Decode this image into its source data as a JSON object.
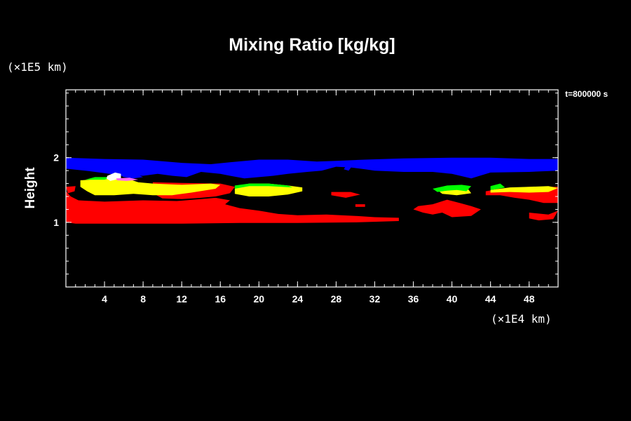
{
  "chart_data": {
    "type": "heatmap",
    "title": "Mixing Ratio [kg/kg]",
    "xlabel": "",
    "ylabel": "Height",
    "x_unit_label": "(×1E4 km)",
    "y_unit_label": "(×1E5 km)",
    "time_label": "t=800000 s",
    "xlim": [
      0,
      51
    ],
    "ylim": [
      0,
      3.05
    ],
    "x_ticks": [
      4,
      8,
      12,
      16,
      20,
      24,
      28,
      32,
      36,
      40,
      44,
      48
    ],
    "y_ticks": [
      1,
      2
    ],
    "colors": {
      "background": "#000000",
      "axes": "#ffffff",
      "level_1": "#ff0000",
      "level_2": "#ffff00",
      "level_3": "#00ff00",
      "level_4": "#0000ff",
      "level_5": "#ffffff",
      "level_6": "#ff66ff"
    },
    "regions": [
      {
        "color": "level_4",
        "outline": [
          [
            0,
            2.0
          ],
          [
            4,
            1.98
          ],
          [
            8,
            1.97
          ],
          [
            12,
            1.92
          ],
          [
            15,
            1.9
          ],
          [
            17,
            1.93
          ],
          [
            20,
            1.97
          ],
          [
            23,
            1.97
          ],
          [
            26,
            1.94
          ],
          [
            28,
            1.95
          ],
          [
            31,
            1.97
          ],
          [
            35,
            1.99
          ],
          [
            40,
            2.0
          ],
          [
            44,
            2.0
          ],
          [
            48,
            1.98
          ],
          [
            51,
            1.98
          ],
          [
            51,
            1.8
          ],
          [
            48,
            1.78
          ],
          [
            44,
            1.77
          ],
          [
            42,
            1.68
          ],
          [
            40,
            1.75
          ],
          [
            38,
            1.78
          ],
          [
            35,
            1.78
          ],
          [
            32,
            1.8
          ],
          [
            31,
            1.82
          ],
          [
            29.5,
            1.85
          ],
          [
            28,
            1.86
          ],
          [
            26.5,
            1.8
          ],
          [
            25,
            1.78
          ],
          [
            23,
            1.75
          ],
          [
            21.5,
            1.72
          ],
          [
            20,
            1.7
          ],
          [
            18.5,
            1.68
          ],
          [
            17,
            1.72
          ],
          [
            16,
            1.75
          ],
          [
            14,
            1.78
          ],
          [
            12.5,
            1.7
          ],
          [
            11,
            1.72
          ],
          [
            9.5,
            1.75
          ],
          [
            8,
            1.72
          ],
          [
            6,
            1.72
          ],
          [
            4,
            1.76
          ],
          [
            2,
            1.8
          ],
          [
            0,
            1.83
          ]
        ]
      },
      {
        "color": "level_4",
        "outline": [
          [
            5.5,
            1.74
          ],
          [
            6.5,
            1.72
          ],
          [
            7.5,
            1.73
          ],
          [
            8,
            1.7
          ],
          [
            7,
            1.68
          ],
          [
            6,
            1.7
          ]
        ]
      },
      {
        "color": "level_4",
        "outline": [
          [
            29,
            1.87
          ],
          [
            29.6,
            1.86
          ],
          [
            29.3,
            1.8
          ],
          [
            28.8,
            1.82
          ]
        ]
      },
      {
        "color": "level_1",
        "outline": [
          [
            0,
            1.48
          ],
          [
            0.5,
            1.4
          ],
          [
            1.3,
            1.34
          ],
          [
            4,
            1.32
          ],
          [
            8,
            1.34
          ],
          [
            11.5,
            1.33
          ],
          [
            14,
            1.36
          ],
          [
            15.5,
            1.38
          ],
          [
            17,
            1.34
          ],
          [
            16.5,
            1.28
          ],
          [
            18,
            1.22
          ],
          [
            20,
            1.18
          ],
          [
            22,
            1.13
          ],
          [
            24,
            1.11
          ],
          [
            27,
            1.12
          ],
          [
            30,
            1.1
          ],
          [
            32,
            1.08
          ],
          [
            34.5,
            1.07
          ],
          [
            34.5,
            1.02
          ],
          [
            30,
            1.0
          ],
          [
            24,
            0.99
          ],
          [
            18,
            0.99
          ],
          [
            12,
            0.98
          ],
          [
            6,
            0.98
          ],
          [
            1,
            0.98
          ],
          [
            0,
            1.0
          ]
        ]
      },
      {
        "color": "level_1",
        "outline": [
          [
            0,
            1.55
          ],
          [
            1,
            1.56
          ],
          [
            0.9,
            1.48
          ],
          [
            0.2,
            1.45
          ]
        ]
      },
      {
        "color": "level_1",
        "outline": [
          [
            9,
            1.62
          ],
          [
            12,
            1.61
          ],
          [
            16,
            1.6
          ],
          [
            17.5,
            1.55
          ],
          [
            17,
            1.45
          ],
          [
            15.5,
            1.4
          ],
          [
            14,
            1.38
          ],
          [
            12,
            1.36
          ],
          [
            10,
            1.37
          ],
          [
            9,
            1.45
          ]
        ]
      },
      {
        "color": "level_1",
        "outline": [
          [
            27.5,
            1.47
          ],
          [
            29.5,
            1.47
          ],
          [
            30.5,
            1.43
          ],
          [
            29,
            1.38
          ],
          [
            27.5,
            1.42
          ]
        ]
      },
      {
        "color": "level_1",
        "outline": [
          [
            30,
            1.28
          ],
          [
            31,
            1.28
          ],
          [
            31,
            1.24
          ],
          [
            30,
            1.24
          ]
        ]
      },
      {
        "color": "level_1",
        "outline": [
          [
            36.5,
            1.25
          ],
          [
            38,
            1.28
          ],
          [
            39.5,
            1.35
          ],
          [
            40.8,
            1.3
          ],
          [
            42,
            1.25
          ],
          [
            43,
            1.2
          ],
          [
            42,
            1.1
          ],
          [
            40,
            1.08
          ],
          [
            39,
            1.15
          ],
          [
            38,
            1.12
          ],
          [
            37,
            1.15
          ],
          [
            36,
            1.2
          ]
        ]
      },
      {
        "color": "level_1",
        "outline": [
          [
            43.5,
            1.48
          ],
          [
            45,
            1.52
          ],
          [
            48,
            1.55
          ],
          [
            51,
            1.55
          ],
          [
            51,
            1.3
          ],
          [
            49.5,
            1.3
          ],
          [
            48,
            1.35
          ],
          [
            46.5,
            1.38
          ],
          [
            45,
            1.42
          ],
          [
            43.5,
            1.42
          ]
        ]
      },
      {
        "color": "level_1",
        "outline": [
          [
            48,
            1.15
          ],
          [
            50,
            1.12
          ],
          [
            51,
            1.18
          ],
          [
            50.5,
            1.05
          ],
          [
            49,
            1.03
          ],
          [
            48,
            1.06
          ]
        ]
      },
      {
        "color": "level_2",
        "outline": [
          [
            1.5,
            1.65
          ],
          [
            4.5,
            1.68
          ],
          [
            6.5,
            1.67
          ],
          [
            7.5,
            1.62
          ],
          [
            9,
            1.6
          ],
          [
            12,
            1.58
          ],
          [
            15,
            1.6
          ],
          [
            16,
            1.58
          ],
          [
            15.5,
            1.52
          ],
          [
            13,
            1.46
          ],
          [
            11,
            1.42
          ],
          [
            9,
            1.42
          ],
          [
            7,
            1.44
          ],
          [
            5,
            1.42
          ],
          [
            3,
            1.42
          ],
          [
            2.2,
            1.48
          ],
          [
            1.5,
            1.55
          ]
        ]
      },
      {
        "color": "level_2",
        "outline": [
          [
            17.5,
            1.55
          ],
          [
            19,
            1.6
          ],
          [
            21,
            1.6
          ],
          [
            23,
            1.57
          ],
          [
            24.5,
            1.54
          ],
          [
            24.5,
            1.48
          ],
          [
            23,
            1.43
          ],
          [
            21,
            1.4
          ],
          [
            19,
            1.4
          ],
          [
            17.5,
            1.44
          ]
        ]
      },
      {
        "color": "level_2",
        "outline": [
          [
            38.5,
            1.5
          ],
          [
            40,
            1.55
          ],
          [
            41.5,
            1.55
          ],
          [
            42,
            1.45
          ],
          [
            40.5,
            1.42
          ],
          [
            39,
            1.44
          ]
        ]
      },
      {
        "color": "level_2",
        "outline": [
          [
            44,
            1.5
          ],
          [
            46,
            1.54
          ],
          [
            48,
            1.55
          ],
          [
            50,
            1.56
          ],
          [
            51,
            1.53
          ],
          [
            50,
            1.47
          ],
          [
            48,
            1.46
          ],
          [
            46,
            1.47
          ],
          [
            44,
            1.46
          ]
        ]
      },
      {
        "color": "level_3",
        "outline": [
          [
            17.5,
            1.57
          ],
          [
            19,
            1.6
          ],
          [
            21,
            1.6
          ],
          [
            23,
            1.57
          ],
          [
            23.5,
            1.54
          ],
          [
            21,
            1.56
          ],
          [
            19,
            1.56
          ],
          [
            17.5,
            1.52
          ]
        ]
      },
      {
        "color": "level_3",
        "outline": [
          [
            38,
            1.52
          ],
          [
            39.5,
            1.57
          ],
          [
            41,
            1.58
          ],
          [
            42,
            1.56
          ],
          [
            41.5,
            1.48
          ],
          [
            40.5,
            1.5
          ],
          [
            39.5,
            1.49
          ],
          [
            38.5,
            1.47
          ]
        ]
      },
      {
        "color": "level_3",
        "outline": [
          [
            44,
            1.56
          ],
          [
            45,
            1.6
          ],
          [
            45.5,
            1.54
          ],
          [
            44.5,
            1.51
          ],
          [
            44,
            1.5
          ]
        ]
      },
      {
        "color": "level_3",
        "outline": [
          [
            2,
            1.66
          ],
          [
            3,
            1.7
          ],
          [
            5,
            1.7
          ],
          [
            4,
            1.66
          ]
        ]
      },
      {
        "color": "level_5",
        "outline": [
          [
            4.3,
            1.72
          ],
          [
            5.1,
            1.77
          ],
          [
            5.7,
            1.75
          ],
          [
            5.7,
            1.68
          ],
          [
            4.6,
            1.64
          ],
          [
            4.2,
            1.68
          ]
        ]
      },
      {
        "color": "level_6",
        "outline": [
          [
            5.2,
            1.68
          ],
          [
            6.6,
            1.69
          ],
          [
            7.5,
            1.66
          ],
          [
            6.3,
            1.64
          ],
          [
            5.3,
            1.65
          ]
        ]
      }
    ]
  }
}
